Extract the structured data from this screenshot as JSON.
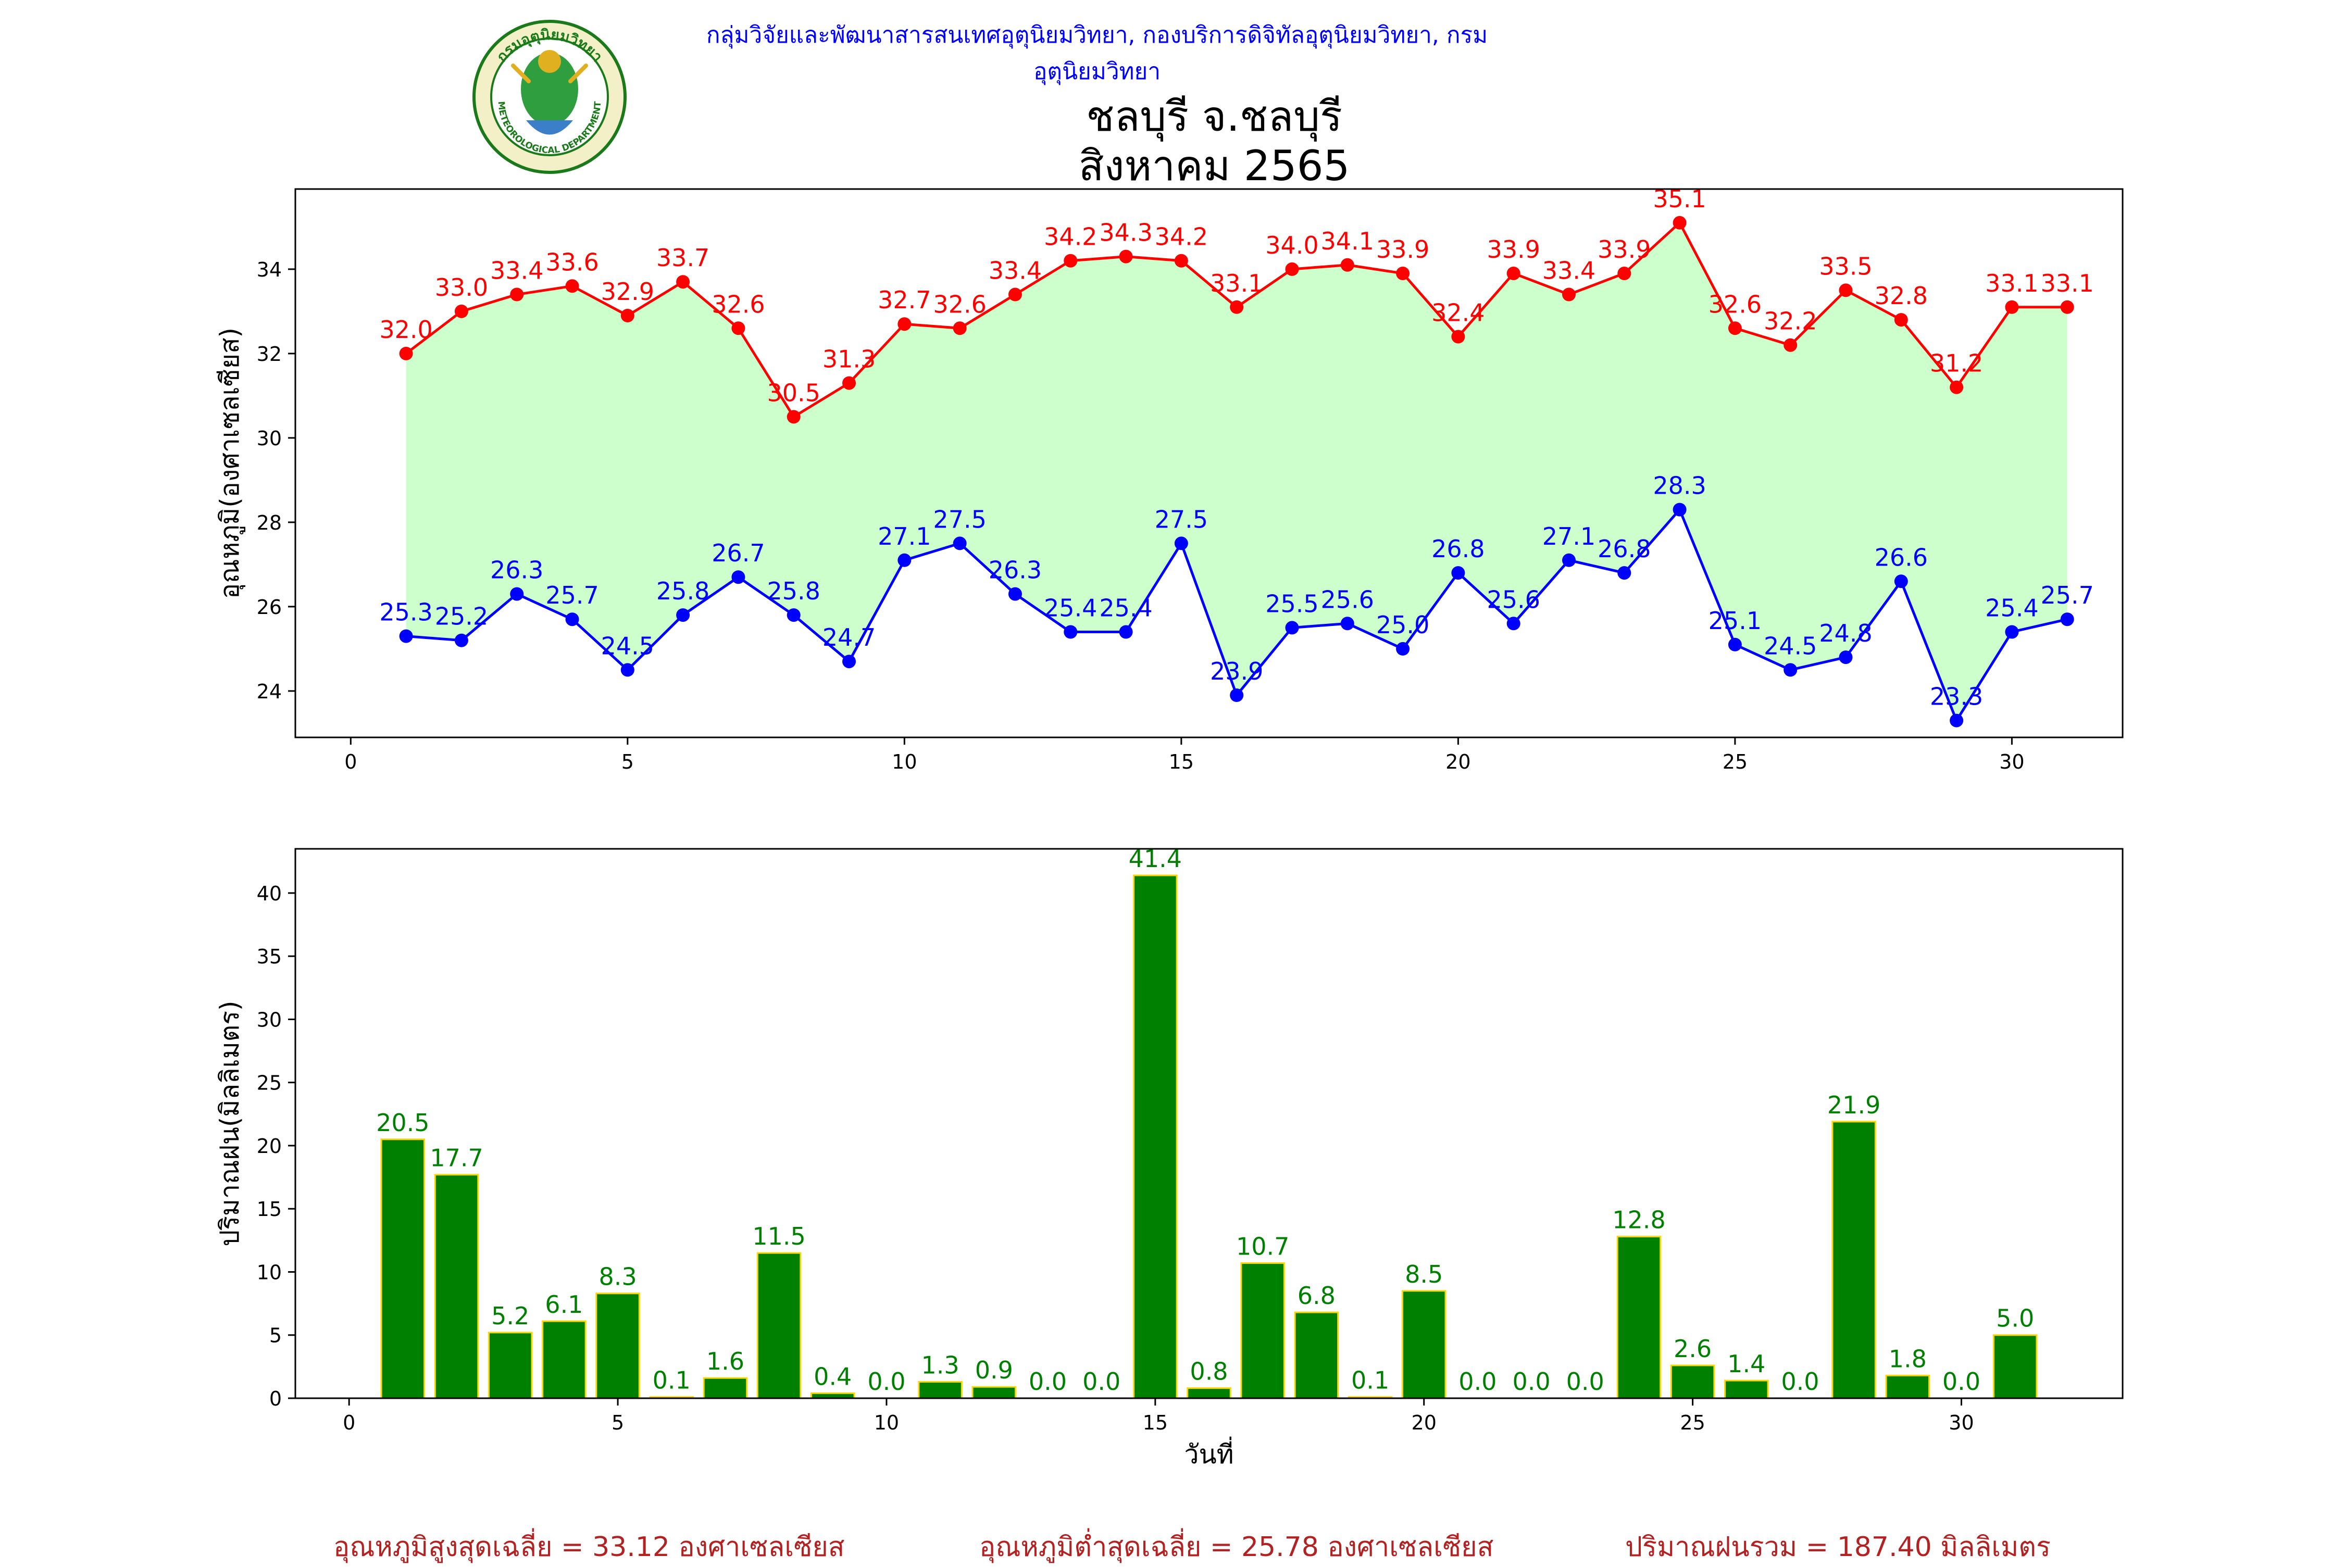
{
  "header": {
    "department": "กลุ่มวิจัยและพัฒนาสารสนเทศอุตุนิยมวิทยา, กองบริการดิจิทัลอุตุนิยมวิทยา, กรมอุตุนิยมวิทยา",
    "title_line1": "ชลบุรี จ.ชลบุรี",
    "title_line2": "สิงหาคม 2565",
    "logo_text_top": "กรมอุตุนิยมวิทยา",
    "logo_text_bottom": "METEOROLOGICAL DEPARTMENT"
  },
  "footer": {
    "avg_max": "อุณหภูมิสูงสุดเฉลี่ย = 33.12 องศาเซลเซียส",
    "avg_min": "อุณหภูมิต่ำสุดเฉลี่ย = 25.78 องศาเซลเซียส",
    "total_rain": "ปริมาณฝนรวม = 187.40 มิลลิเมตร"
  },
  "colors": {
    "max_series": "#ff0000",
    "min_series": "#0000ff",
    "fill_band": "#ccffcc",
    "rain_bar": "#008000",
    "rain_bar_edge": "#ffd700",
    "rain_label": "#008000",
    "header_text": "#0000ff",
    "footer_text": "#b22222"
  },
  "chart_data": [
    {
      "type": "line",
      "ylabel": "อุณหภูมิ(องศาเซลเซียส)",
      "xlim": [
        -1,
        32
      ],
      "ylim": [
        22.9,
        35.9
      ],
      "xticks": [
        0,
        5,
        10,
        15,
        20,
        25,
        30
      ],
      "yticks": [
        24,
        26,
        28,
        30,
        32,
        34
      ],
      "x": [
        1,
        2,
        3,
        4,
        5,
        6,
        7,
        8,
        9,
        10,
        11,
        12,
        13,
        14,
        15,
        16,
        17,
        18,
        19,
        20,
        21,
        22,
        23,
        24,
        25,
        26,
        27,
        28,
        29,
        30,
        31
      ],
      "series": [
        {
          "id": "max",
          "values": [
            32.0,
            33.0,
            33.4,
            33.6,
            32.9,
            33.7,
            32.6,
            30.5,
            31.3,
            32.7,
            32.6,
            33.4,
            34.2,
            34.3,
            34.2,
            33.1,
            34.0,
            34.1,
            33.9,
            32.4,
            33.9,
            33.4,
            33.9,
            35.1,
            32.6,
            32.2,
            33.5,
            32.8,
            31.2,
            33.1,
            33.1
          ]
        },
        {
          "id": "min",
          "values": [
            25.3,
            25.2,
            26.3,
            25.7,
            24.5,
            25.8,
            26.7,
            25.8,
            24.7,
            27.1,
            27.5,
            26.3,
            25.4,
            25.4,
            27.5,
            23.9,
            25.5,
            25.6,
            25.0,
            26.8,
            25.6,
            27.1,
            26.8,
            28.3,
            25.1,
            24.5,
            24.8,
            26.6,
            23.3,
            25.4,
            25.7
          ]
        }
      ],
      "fill_between": [
        "min",
        "max"
      ]
    },
    {
      "type": "bar",
      "xlabel": "วันที่",
      "ylabel": "ปริมาณฝน(มิลลิเมตร)",
      "xlim": [
        -1,
        33
      ],
      "ylim": [
        0,
        43.5
      ],
      "xticks": [
        0,
        5,
        10,
        15,
        20,
        25,
        30
      ],
      "yticks": [
        0,
        5,
        10,
        15,
        20,
        25,
        30,
        35,
        40
      ],
      "x": [
        1,
        2,
        3,
        4,
        5,
        6,
        7,
        8,
        9,
        10,
        11,
        12,
        13,
        14,
        15,
        16,
        17,
        18,
        19,
        20,
        21,
        22,
        23,
        24,
        25,
        26,
        27,
        28,
        29,
        30,
        31
      ],
      "values": [
        20.5,
        17.7,
        5.2,
        6.1,
        8.3,
        0.1,
        1.6,
        11.5,
        0.4,
        0.0,
        1.3,
        0.9,
        0.0,
        0.0,
        41.4,
        0.8,
        10.7,
        6.8,
        0.1,
        8.5,
        0.0,
        0.0,
        0.0,
        12.8,
        2.6,
        1.4,
        0.0,
        21.9,
        1.8,
        0.0,
        5.0
      ]
    }
  ]
}
